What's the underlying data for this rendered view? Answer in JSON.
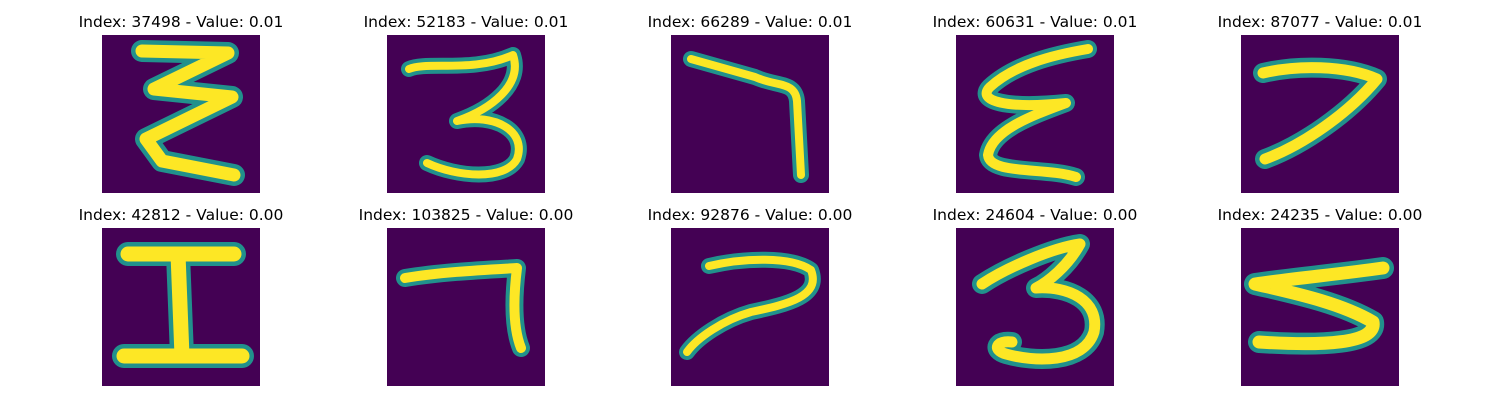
{
  "figure": {
    "colormap": "viridis",
    "background_color": "#440154",
    "stroke_color": "#fde725",
    "samples": [
      {
        "index": "37498",
        "value": "0.01",
        "title": "Index: 37498 - Value: 0.01",
        "glyph": "zigzag-3"
      },
      {
        "index": "52183",
        "value": "0.01",
        "title": "Index: 52183 - Value: 0.01",
        "glyph": "3"
      },
      {
        "index": "66289",
        "value": "0.01",
        "title": "Index: 66289 - Value: 0.01",
        "glyph": "7-hook"
      },
      {
        "index": "60631",
        "value": "0.01",
        "title": "Index: 60631 - Value: 0.01",
        "glyph": "epsilon"
      },
      {
        "index": "87077",
        "value": "0.01",
        "title": "Index: 87077 - Value: 0.01",
        "glyph": "7"
      },
      {
        "index": "42812",
        "value": "0.00",
        "title": "Index: 42812 - Value: 0.00",
        "glyph": "I"
      },
      {
        "index": "103825",
        "value": "0.00",
        "title": "Index: 103825 - Value: 0.00",
        "glyph": "7-hook-short"
      },
      {
        "index": "92876",
        "value": "0.00",
        "title": "Index: 92876 - Value: 0.00",
        "glyph": "7-curved"
      },
      {
        "index": "24604",
        "value": "0.00",
        "title": "Index: 24604 - Value: 0.00",
        "glyph": "3-bold"
      },
      {
        "index": "24235",
        "value": "0.00",
        "title": "Index: 24235 - Value: 0.00",
        "glyph": "5-flat"
      }
    ]
  }
}
